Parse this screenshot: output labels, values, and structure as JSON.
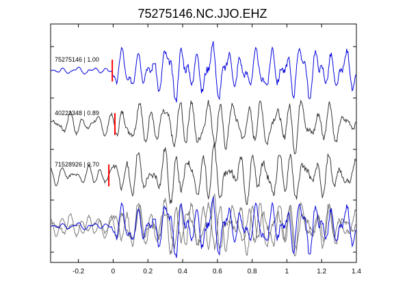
{
  "chart_data": {
    "type": "line",
    "title": "75275146.NC.JJO.EHZ",
    "xlabel": "",
    "ylabel": "",
    "xlim": [
      -0.36,
      1.4
    ],
    "xticks": [
      -0.2,
      0,
      0.2,
      0.4,
      0.6,
      0.8,
      1,
      1.2,
      1.4
    ],
    "xtick_labels": [
      "-0.2",
      "0",
      "0.2",
      "0.4",
      "0.6",
      "0.8",
      "1",
      "1.2",
      "1.4"
    ],
    "grid": false,
    "legend": "none",
    "colors": {
      "master": "#0000dd",
      "other": "#333333",
      "overlay_other": "#777777",
      "pick": "#ff0000"
    },
    "series": [
      {
        "name": "75275146 | 1.00",
        "color": "#0000dd",
        "pick_time": -0.005,
        "amp_pre": 0.07,
        "amp_post": 0.42,
        "envelope": [
          0.55,
          0.6,
          0.6,
          0.95,
          1.0,
          0.95,
          0.8,
          0.5,
          0.8,
          0.95,
          0.9,
          0.7,
          0.5
        ],
        "seed": 3
      },
      {
        "name": "40221348 | 0.89",
        "color": "#333333",
        "pick_time": 0.01,
        "amp_pre": 0.22,
        "amp_post": 0.42,
        "envelope": [
          0.6,
          0.7,
          0.7,
          0.85,
          1.0,
          0.95,
          0.8,
          0.7,
          0.8,
          0.95,
          0.8,
          0.5,
          0.3
        ],
        "seed": 7
      },
      {
        "name": "71528926 | 0.70",
        "color": "#333333",
        "pick_time": -0.025,
        "amp_pre": 0.18,
        "amp_post": 0.42,
        "envelope": [
          0.5,
          0.6,
          0.8,
          0.9,
          0.85,
          1.0,
          0.85,
          0.8,
          0.9,
          0.8,
          0.65,
          0.5,
          0.4
        ],
        "seed": 11
      }
    ],
    "overlay": {
      "description_row": "stacked overlay of all traces",
      "series_refs": [
        0,
        1,
        2
      ]
    }
  }
}
